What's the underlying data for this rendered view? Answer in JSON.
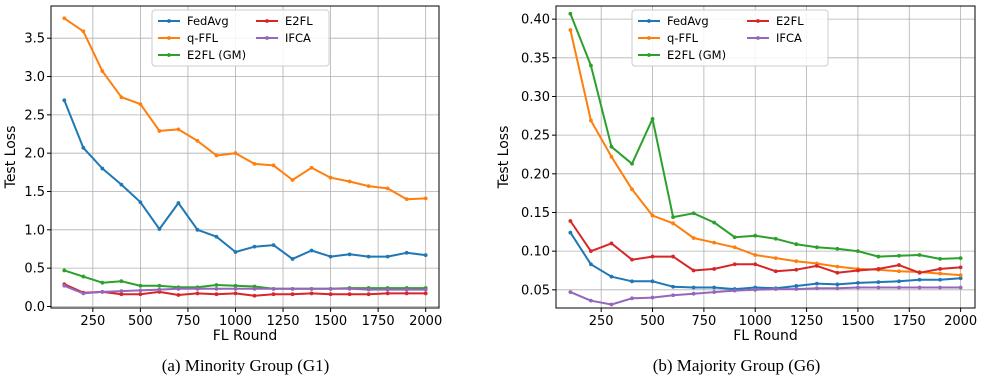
{
  "colors": {
    "FedAvg": "#1f77b4",
    "q-FFL": "#ff7f0e",
    "E2FL (GM)": "#2ca02c",
    "E2FL": "#d62728",
    "IFCA": "#9467bd"
  },
  "chart_data": [
    {
      "type": "line",
      "caption": "(a)  Minority Group (G1)",
      "xlabel": "FL Round",
      "ylabel": "Test Loss",
      "xlim": [
        30,
        2070
      ],
      "ylim": [
        -0.02,
        3.92
      ],
      "xticks": [
        250,
        500,
        750,
        1000,
        1250,
        1500,
        1750,
        2000
      ],
      "xtick_labels": [
        "250",
        "500",
        "750",
        "1000",
        "1250",
        "1500",
        "1750",
        "2000"
      ],
      "yticks": [
        0.0,
        0.5,
        1.0,
        1.5,
        2.0,
        2.5,
        3.0,
        3.5
      ],
      "ytick_labels": [
        "0.0",
        "0.5",
        "1.0",
        "1.5",
        "2.0",
        "2.5",
        "3.0",
        "3.5"
      ],
      "grid": true,
      "legend": {
        "placement": "top-center",
        "columns": 2,
        "order": [
          "FedAvg",
          "E2FL",
          "q-FFL",
          "IFCA",
          "E2FL (GM)"
        ]
      },
      "x": [
        100,
        200,
        300,
        400,
        500,
        600,
        700,
        800,
        900,
        1000,
        1100,
        1200,
        1300,
        1400,
        1500,
        1600,
        1700,
        1800,
        1900,
        2000
      ],
      "series": [
        {
          "name": "FedAvg",
          "values": [
            2.69,
            2.07,
            1.8,
            1.59,
            1.36,
            1.01,
            1.35,
            1.0,
            0.91,
            0.71,
            0.78,
            0.8,
            0.62,
            0.73,
            0.65,
            0.68,
            0.65,
            0.65,
            0.7,
            0.67
          ]
        },
        {
          "name": "q-FFL",
          "values": [
            3.76,
            3.59,
            3.07,
            2.73,
            2.64,
            2.29,
            2.31,
            2.16,
            1.97,
            2.0,
            1.86,
            1.84,
            1.65,
            1.81,
            1.68,
            1.63,
            1.57,
            1.54,
            1.4,
            1.41
          ]
        },
        {
          "name": "E2FL (GM)",
          "values": [
            0.47,
            0.39,
            0.31,
            0.33,
            0.27,
            0.27,
            0.25,
            0.25,
            0.28,
            0.27,
            0.26,
            0.23,
            0.23,
            0.23,
            0.23,
            0.24,
            0.24,
            0.24,
            0.24,
            0.24
          ]
        },
        {
          "name": "E2FL",
          "values": [
            0.29,
            0.18,
            0.19,
            0.16,
            0.16,
            0.19,
            0.15,
            0.17,
            0.16,
            0.17,
            0.14,
            0.16,
            0.16,
            0.17,
            0.16,
            0.16,
            0.16,
            0.17,
            0.17,
            0.17
          ]
        },
        {
          "name": "IFCA",
          "values": [
            0.27,
            0.17,
            0.19,
            0.2,
            0.21,
            0.22,
            0.23,
            0.23,
            0.23,
            0.23,
            0.23,
            0.23,
            0.23,
            0.23,
            0.23,
            0.23,
            0.22,
            0.22,
            0.22,
            0.22
          ]
        }
      ]
    },
    {
      "type": "line",
      "caption": "(b)  Majority Group (G6)",
      "xlabel": "FL Round",
      "ylabel": "Test Loss",
      "xlim": [
        30,
        2070
      ],
      "ylim": [
        0.0265,
        0.417
      ],
      "xticks": [
        250,
        500,
        750,
        1000,
        1250,
        1500,
        1750,
        2000
      ],
      "xtick_labels": [
        "250",
        "500",
        "750",
        "1000",
        "1250",
        "1500",
        "1750",
        "2000"
      ],
      "yticks": [
        0.05,
        0.1,
        0.15,
        0.2,
        0.25,
        0.3,
        0.35,
        0.4
      ],
      "ytick_labels": [
        "0.05",
        "0.10",
        "0.15",
        "0.20",
        "0.25",
        "0.30",
        "0.35",
        "0.40"
      ],
      "grid": true,
      "legend": {
        "placement": "top-center",
        "columns": 2,
        "order": [
          "FedAvg",
          "E2FL",
          "q-FFL",
          "IFCA",
          "E2FL (GM)"
        ]
      },
      "x": [
        100,
        200,
        300,
        400,
        500,
        600,
        700,
        800,
        900,
        1000,
        1100,
        1200,
        1300,
        1400,
        1500,
        1600,
        1700,
        1800,
        1900,
        2000
      ],
      "series": [
        {
          "name": "FedAvg",
          "values": [
            0.124,
            0.083,
            0.067,
            0.061,
            0.061,
            0.054,
            0.053,
            0.053,
            0.051,
            0.053,
            0.052,
            0.055,
            0.058,
            0.057,
            0.059,
            0.06,
            0.061,
            0.063,
            0.063,
            0.065
          ]
        },
        {
          "name": "q-FFL",
          "values": [
            0.386,
            0.269,
            0.222,
            0.18,
            0.146,
            0.136,
            0.117,
            0.111,
            0.105,
            0.095,
            0.091,
            0.087,
            0.084,
            0.08,
            0.077,
            0.076,
            0.074,
            0.073,
            0.071,
            0.069
          ]
        },
        {
          "name": "E2FL (GM)",
          "values": [
            0.407,
            0.34,
            0.235,
            0.213,
            0.271,
            0.144,
            0.149,
            0.137,
            0.118,
            0.12,
            0.116,
            0.109,
            0.105,
            0.103,
            0.1,
            0.093,
            0.094,
            0.095,
            0.09,
            0.091
          ]
        },
        {
          "name": "E2FL",
          "values": [
            0.139,
            0.1,
            0.11,
            0.089,
            0.093,
            0.093,
            0.075,
            0.077,
            0.083,
            0.083,
            0.074,
            0.076,
            0.081,
            0.072,
            0.075,
            0.077,
            0.082,
            0.072,
            0.077,
            0.079
          ]
        },
        {
          "name": "IFCA",
          "values": [
            0.047,
            0.036,
            0.031,
            0.039,
            0.04,
            0.043,
            0.045,
            0.047,
            0.049,
            0.05,
            0.051,
            0.051,
            0.052,
            0.052,
            0.053,
            0.053,
            0.053,
            0.053,
            0.053,
            0.053
          ]
        }
      ]
    }
  ]
}
